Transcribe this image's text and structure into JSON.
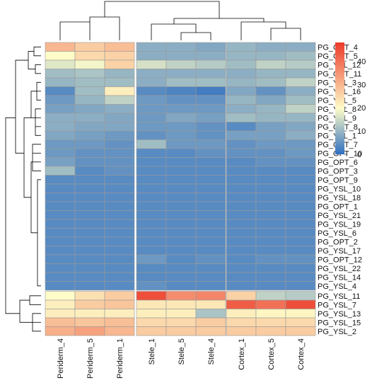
{
  "chart_data": {
    "type": "heatmap",
    "title": "",
    "columns": [
      "Periderm_4",
      "Periderm_5",
      "Periderm_1",
      "Stele_1",
      "Stele_5",
      "Stele_4",
      "Cortex_1",
      "Cortex_5",
      "Cortex_4"
    ],
    "column_groups": [
      [
        "Periderm_4",
        "Periderm_5",
        "Periderm_1"
      ],
      [
        "Stele_1",
        "Stele_5",
        "Stele_4"
      ],
      [
        "Cortex_1",
        "Cortex_5",
        "Cortex_4"
      ]
    ],
    "rows": [
      "PG_OPT_4",
      "PG_OPT_5",
      "PG_YSL_12",
      "PG_OPT_11",
      "PG_YSL_3",
      "PG_YSL_16",
      "PG_YSL_5",
      "PG_YSL_8",
      "PG_YSL_9",
      "PG_OPT_8",
      "PG_YSL_1",
      "PG_OPT_7",
      "PG_OPT_10",
      "PG_OPT_6",
      "PG_OPT_3",
      "PG_OPT_9",
      "PG_YSL_10",
      "PG_YSL_18",
      "PG_OPT_1",
      "PG_YSL_21",
      "PG_YSL_19",
      "PG_YSL_6",
      "PG_OPT_2",
      "PG_YSL_17",
      "PG_OPT_12",
      "PG_YSL_22",
      "PG_YSL_14",
      "PG_YSL_4",
      "PG_YSL_11",
      "PG_YSL_7",
      "PG_YSL_13",
      "PG_YSL_15",
      "PG_YSL_2"
    ],
    "row_groups": [
      28,
      5
    ],
    "values": [
      [
        30,
        27,
        29,
        9,
        9,
        8,
        10,
        9,
        9
      ],
      [
        20,
        25,
        26,
        9,
        9,
        9,
        10,
        10,
        11
      ],
      [
        17,
        19,
        26,
        16,
        14,
        13,
        11,
        14,
        13
      ],
      [
        11,
        12,
        10,
        9,
        9,
        9,
        9,
        10,
        10
      ],
      [
        10,
        11,
        11,
        9,
        11,
        11,
        10,
        11,
        14
      ],
      [
        4,
        11,
        22,
        4,
        3,
        2,
        8,
        5,
        9
      ],
      [
        6,
        10,
        14,
        6,
        5,
        5,
        10,
        8,
        11
      ],
      [
        7,
        8,
        9,
        6,
        6,
        6,
        9,
        10,
        14
      ],
      [
        9,
        9,
        8,
        6,
        8,
        7,
        11,
        10,
        10
      ],
      [
        9,
        8,
        8,
        6,
        6,
        5,
        4,
        7,
        8
      ],
      [
        8,
        7,
        6,
        5,
        6,
        5,
        7,
        7,
        9
      ],
      [
        6,
        6,
        5,
        11,
        6,
        6,
        5,
        6,
        6
      ],
      [
        6,
        5,
        5,
        4,
        4,
        5,
        5,
        5,
        6
      ],
      [
        7,
        5,
        5,
        4,
        4,
        4,
        4,
        5,
        5
      ],
      [
        11,
        4,
        5,
        4,
        4,
        4,
        4,
        4,
        4
      ],
      [
        4,
        4,
        4,
        4,
        4,
        4,
        4,
        4,
        4
      ],
      [
        4,
        4,
        4,
        4,
        4,
        4,
        4,
        4,
        4
      ],
      [
        4,
        4,
        4,
        4,
        4,
        4,
        4,
        4,
        4
      ],
      [
        4,
        4,
        4,
        4,
        4,
        4,
        4,
        4,
        4
      ],
      [
        4,
        4,
        4,
        4,
        4,
        4,
        4,
        4,
        4
      ],
      [
        4,
        4,
        4,
        4,
        4,
        4,
        4,
        4,
        4
      ],
      [
        4,
        4,
        4,
        4,
        4,
        4,
        4,
        4,
        4
      ],
      [
        4,
        4,
        4,
        4,
        4,
        4,
        4,
        4,
        4
      ],
      [
        4,
        4,
        4,
        4,
        4,
        4,
        4,
        4,
        4
      ],
      [
        4,
        4,
        4,
        6,
        4,
        5,
        4,
        5,
        5
      ],
      [
        4,
        4,
        4,
        4,
        4,
        4,
        4,
        4,
        4
      ],
      [
        4,
        4,
        4,
        4,
        4,
        4,
        4,
        4,
        4
      ],
      [
        4,
        4,
        4,
        5,
        4,
        4,
        4,
        4,
        4
      ],
      [
        20,
        24,
        27,
        45,
        36,
        37,
        26,
        14,
        13
      ],
      [
        22,
        27,
        28,
        23,
        23,
        23,
        43,
        40,
        45
      ],
      [
        22,
        22,
        22,
        22,
        22,
        12,
        22,
        21,
        21
      ],
      [
        29,
        28,
        29,
        25,
        25,
        27,
        25,
        25,
        25
      ],
      [
        31,
        33,
        30,
        27,
        27,
        27,
        27,
        27,
        27
      ]
    ],
    "colorbar": {
      "min": 0,
      "max": 48,
      "ticks": [
        0,
        10,
        20,
        30,
        40
      ]
    },
    "colors": {
      "low": "#2f6fc0",
      "mid": "#fefcc8",
      "high": "#ec3a2a",
      "border": "#9a9a9a",
      "dendrogram": "#000000"
    },
    "legend_position": "right"
  }
}
